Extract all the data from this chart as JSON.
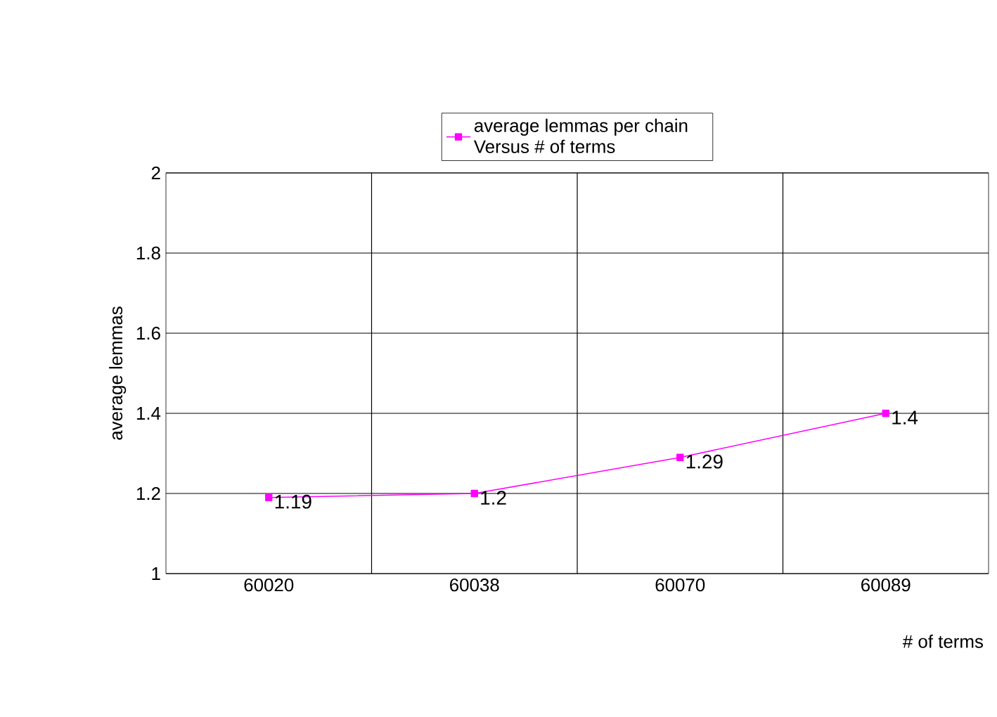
{
  "chart_data": {
    "type": "line",
    "xlabel": "# of terms",
    "ylabel": "average lemmas",
    "categories": [
      "60020",
      "60038",
      "60070",
      "60089"
    ],
    "series": [
      {
        "name": "average lemmas per chain Versus # of terms",
        "color": "#ff00ff",
        "values": [
          1.19,
          1.2,
          1.29,
          1.4
        ]
      }
    ],
    "ylim": [
      1,
      2
    ],
    "yticks": [
      1,
      1.2,
      1.4,
      1.6,
      1.8,
      2
    ],
    "grid": true,
    "legend": "top",
    "marker": "square",
    "line_style": "solid",
    "data_labels": true
  }
}
